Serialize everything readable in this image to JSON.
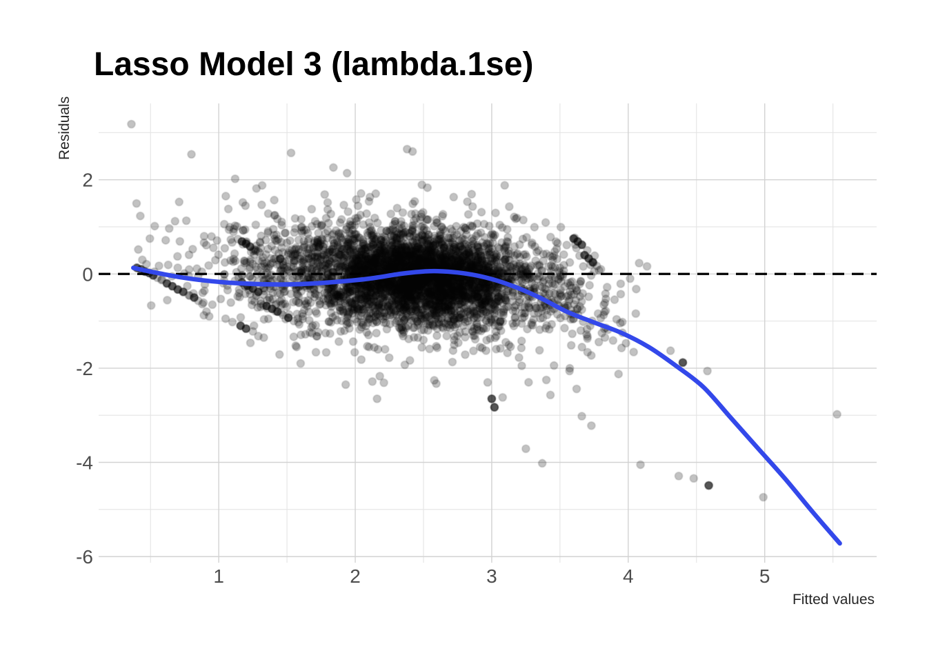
{
  "chart_data": {
    "type": "scatter",
    "title": "Lasso Model 3 (lambda.1se)",
    "xlabel": "Fitted values",
    "ylabel": "Residuals",
    "xlim": [
      0.12,
      5.82
    ],
    "ylim": [
      -6.13,
      3.62
    ],
    "x_ticks": [
      1,
      2,
      3,
      4,
      5
    ],
    "x_tick_labels": [
      "1",
      "2",
      "3",
      "4",
      "5"
    ],
    "y_ticks": [
      2,
      0,
      -2,
      -4,
      -6
    ],
    "y_tick_labels": [
      "2",
      "0",
      "-2",
      "-4",
      "-6"
    ],
    "x_minor_ticks": [
      0.5,
      1.5,
      2.5,
      3.5,
      4.5,
      5.5
    ],
    "y_minor_ticks": [
      3,
      1,
      -1,
      -3,
      -5
    ],
    "grid": "on",
    "legend": "none",
    "zero_reference_line": {
      "y": 0,
      "style": "dashed",
      "color": "#000000",
      "width": 3.2,
      "dash": [
        17,
        11
      ]
    },
    "smooth_line": {
      "color": "#3348ea",
      "width": 6.5,
      "points": [
        [
          0.374,
          0.13
        ],
        [
          0.5,
          0.05
        ],
        [
          0.7,
          -0.06
        ],
        [
          0.9,
          -0.14
        ],
        [
          1.1,
          -0.19
        ],
        [
          1.35,
          -0.22
        ],
        [
          1.6,
          -0.215
        ],
        [
          1.85,
          -0.17
        ],
        [
          2.1,
          -0.1
        ],
        [
          2.35,
          0.01
        ],
        [
          2.55,
          0.06
        ],
        [
          2.75,
          0.03
        ],
        [
          2.95,
          -0.07
        ],
        [
          3.15,
          -0.25
        ],
        [
          3.35,
          -0.5
        ],
        [
          3.55,
          -0.8
        ],
        [
          3.75,
          -1.03
        ],
        [
          3.95,
          -1.25
        ],
        [
          4.15,
          -1.55
        ],
        [
          4.35,
          -1.95
        ],
        [
          4.55,
          -2.4
        ],
        [
          4.75,
          -3.05
        ],
        [
          4.95,
          -3.7
        ],
        [
          5.15,
          -4.35
        ],
        [
          5.35,
          -5.05
        ],
        [
          5.55,
          -5.72
        ]
      ]
    },
    "marker": {
      "radius": 5.5,
      "fill": "#000000",
      "fill_alpha": 0.24,
      "stroke_alpha": 0.16,
      "stroke_width": 1.6
    },
    "point_cloud_model": {
      "seed": 20240613,
      "clip_x": [
        0.38,
        4.18
      ],
      "clip_y": [
        -2.45,
        1.98
      ],
      "clusters": [
        {
          "n": 2400,
          "cx": 2.5,
          "cy": -0.02,
          "sdx": 0.37,
          "sdy": 0.46,
          "rho": -0.12
        },
        {
          "n": 1300,
          "cx": 2.38,
          "cy": -0.12,
          "sdx": 0.54,
          "sdy": 0.62,
          "rho": -0.22
        },
        {
          "n": 430,
          "cx": 2.32,
          "cy": -0.18,
          "sdx": 0.74,
          "sdy": 0.82,
          "rho": -0.35
        },
        {
          "n": 210,
          "cx": 1.55,
          "cy": -0.15,
          "sdx": 0.38,
          "sdy": 0.55,
          "rho": -0.3
        },
        {
          "n": 95,
          "cx": 3.55,
          "cy": -0.45,
          "sdx": 0.22,
          "sdy": 0.55,
          "rho": -0.5
        }
      ]
    },
    "outlier_points": [
      [
        0.36,
        3.18,
        0
      ],
      [
        0.8,
        2.54,
        0
      ],
      [
        1.12,
        2.02,
        0
      ],
      [
        1.53,
        2.57,
        0
      ],
      [
        1.84,
        2.26,
        0
      ],
      [
        1.94,
        2.14,
        0
      ],
      [
        2.38,
        2.65,
        0
      ],
      [
        2.42,
        2.6,
        0
      ],
      [
        0.68,
        1.12,
        0
      ],
      [
        0.4,
        0.13,
        1
      ],
      [
        0.43,
        0.1,
        1
      ],
      [
        0.46,
        0.05,
        1
      ],
      [
        0.49,
        0.02,
        1
      ],
      [
        0.52,
        -0.03,
        1
      ],
      [
        0.47,
        0.21,
        0
      ],
      [
        0.44,
        0.3,
        0
      ],
      [
        0.55,
        -0.08,
        0
      ],
      [
        0.58,
        -0.13,
        0
      ],
      [
        0.62,
        -0.2,
        1
      ],
      [
        0.66,
        -0.26,
        1
      ],
      [
        0.7,
        -0.33,
        1
      ],
      [
        0.74,
        -0.38,
        1
      ],
      [
        0.78,
        -0.45,
        0
      ],
      [
        0.82,
        -0.5,
        1
      ],
      [
        0.85,
        -0.57,
        0
      ],
      [
        0.88,
        -0.64,
        0
      ],
      [
        0.91,
        -0.8,
        0
      ],
      [
        0.93,
        -0.9,
        0
      ],
      [
        1.05,
        -0.95,
        0
      ],
      [
        1.1,
        -1.02,
        0
      ],
      [
        1.16,
        -1.1,
        1
      ],
      [
        1.2,
        -1.16,
        1
      ],
      [
        1.25,
        -1.22,
        0
      ],
      [
        1.33,
        -1.35,
        0
      ],
      [
        1.14,
        0.74,
        0
      ],
      [
        1.17,
        0.69,
        1
      ],
      [
        1.2,
        0.64,
        1
      ],
      [
        1.23,
        0.58,
        1
      ],
      [
        1.26,
        0.52,
        0
      ],
      [
        1.3,
        0.45,
        0
      ],
      [
        1.17,
        -0.18,
        1
      ],
      [
        1.21,
        -0.25,
        1
      ],
      [
        1.25,
        -0.31,
        1
      ],
      [
        1.29,
        -0.38,
        1
      ],
      [
        1.33,
        -0.44,
        0
      ],
      [
        1.37,
        -0.5,
        0
      ],
      [
        1.35,
        -0.68,
        1
      ],
      [
        1.39,
        -0.74,
        1
      ],
      [
        1.43,
        -0.8,
        1
      ],
      [
        1.47,
        -0.87,
        0
      ],
      [
        1.51,
        -0.93,
        1
      ],
      [
        1.55,
        -1.0,
        0
      ],
      [
        1.59,
        -1.07,
        0
      ],
      [
        1.57,
        -1.55,
        0
      ],
      [
        1.6,
        -1.9,
        0
      ],
      [
        1.72,
        -1.32,
        0
      ],
      [
        3.6,
        0.75,
        1
      ],
      [
        3.63,
        0.69,
        1
      ],
      [
        3.66,
        0.62,
        1
      ],
      [
        3.7,
        0.5,
        0
      ],
      [
        3.68,
        0.4,
        1
      ],
      [
        3.71,
        0.33,
        1
      ],
      [
        3.74,
        0.25,
        1
      ],
      [
        3.77,
        0.17,
        0
      ],
      [
        3.8,
        0.1,
        0
      ],
      [
        3.62,
        0.55,
        0
      ],
      [
        4.08,
        0.23,
        0
      ],
      [
        4.31,
        -1.63,
        0
      ],
      [
        4.4,
        -1.88,
        1
      ],
      [
        4.58,
        -2.06,
        0
      ],
      [
        5.53,
        -2.98,
        0
      ],
      [
        4.09,
        -4.05,
        0
      ],
      [
        4.37,
        -4.29,
        0
      ],
      [
        4.48,
        -4.34,
        0
      ],
      [
        4.59,
        -4.49,
        1
      ],
      [
        4.99,
        -4.74,
        0
      ],
      [
        1.93,
        -2.35,
        0
      ],
      [
        2.16,
        -2.65,
        0
      ],
      [
        2.18,
        -2.17,
        0
      ],
      [
        2.21,
        -2.31,
        0
      ],
      [
        3.0,
        -2.65,
        1
      ],
      [
        3.02,
        -2.83,
        1
      ],
      [
        3.08,
        -2.62,
        0
      ],
      [
        3.27,
        -2.3,
        0
      ],
      [
        3.4,
        -2.25,
        0
      ],
      [
        3.43,
        -2.57,
        0
      ],
      [
        3.57,
        -2.06,
        0
      ],
      [
        3.66,
        -3.02,
        0
      ],
      [
        3.73,
        -3.22,
        0
      ],
      [
        3.25,
        -3.71,
        0
      ],
      [
        3.37,
        -4.02,
        0
      ],
      [
        3.22,
        -1.95,
        0
      ],
      [
        3.35,
        -1.62,
        0
      ]
    ],
    "style": {
      "background": "#ffffff",
      "grid_major_color": "#d2d2d2",
      "grid_minor_color": "#e4e4e4",
      "tick_label_color": "#4d4d4d",
      "axis_title_color": "#262626",
      "title_color": "#000000"
    }
  }
}
